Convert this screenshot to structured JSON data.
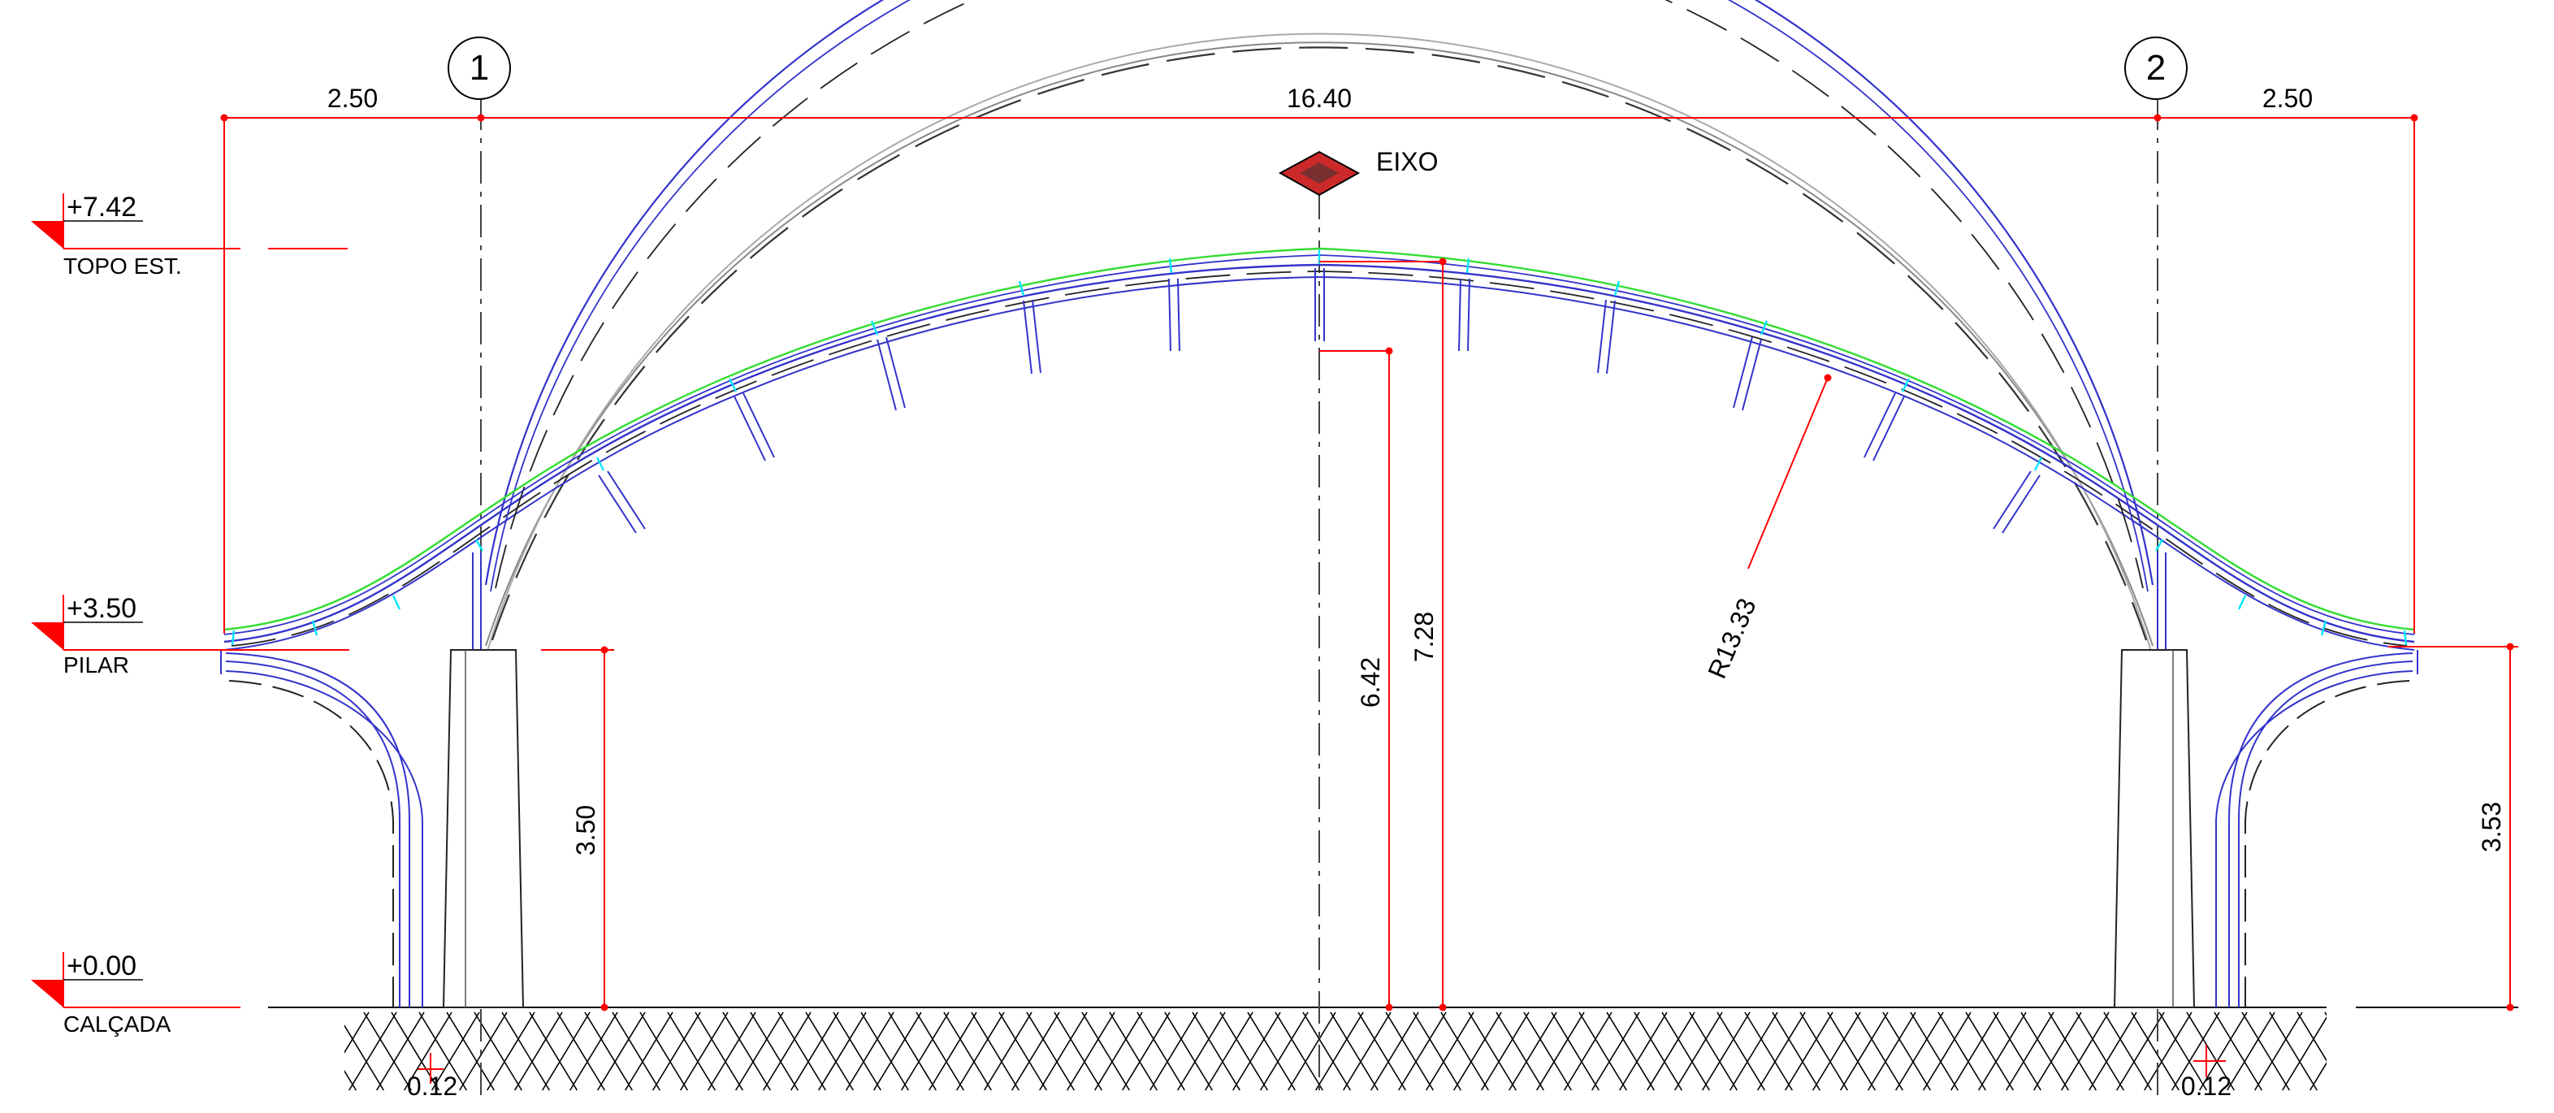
{
  "drawing": {
    "axes": {
      "axis_1": "1",
      "axis_2": "2"
    },
    "dimensions": {
      "left_overhang": "2.50",
      "main_span": "16.40",
      "right_overhang": "2.50",
      "pillar_height_left": "3.50",
      "pillar_height_right": "3.53",
      "arch_intrados_height": "6.42",
      "arch_top_height": "7.28",
      "arch_radius": "R13.33",
      "base_offset_left": "0.12",
      "base_offset_right": "0.12"
    },
    "levels": [
      {
        "value": "+7.42",
        "label": "TOPO EST."
      },
      {
        "value": "+3.50",
        "label": "PILAR"
      },
      {
        "value": "+0.00",
        "label": "CALÇADA"
      }
    ],
    "axis_marker": {
      "label": "EIXO"
    }
  },
  "colors": {
    "dimension": "#ff0000",
    "arch_structure": "#3333cc",
    "arch_top": "#33dd33",
    "connectors": "#00e5ff",
    "section_lines": "#555555",
    "hatch": "#000000",
    "level_marker": "#ff0000",
    "axis_diamond": "#cc2a2a"
  }
}
